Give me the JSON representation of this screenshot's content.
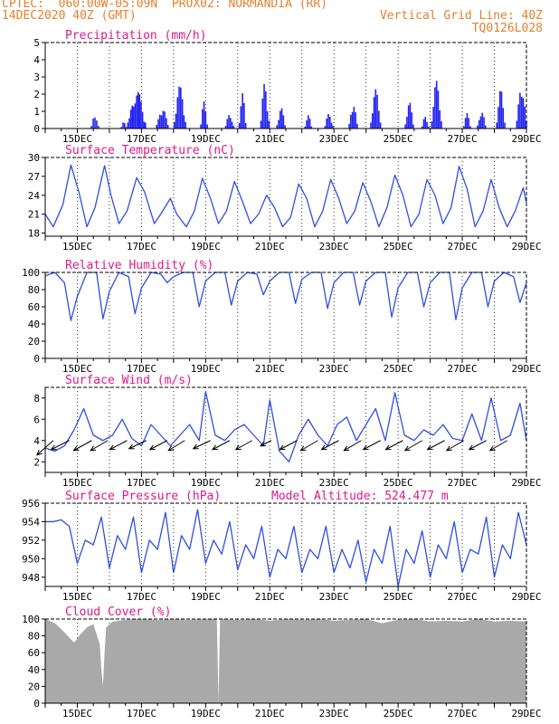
{
  "header": {
    "line1_left": "CPTEC:  060:00W-05:09N  PROX02: NORMANDIA (RR)",
    "line2_left": "14DEC2020 40Z (GMT)",
    "line2_right": "Vertical Grid Line: 40Z",
    "line3_right": "TQ0126L028"
  },
  "colors": {
    "header": "#e5802e",
    "title": "#e0188c",
    "line": "#2f4fe0",
    "bar": "#2323f0",
    "cloud": "#a9a9a9",
    "arrow": "#000000"
  },
  "x_axis": {
    "start_day": 14,
    "end_day": 29,
    "tick_labels": [
      "15DEC",
      "17DEC",
      "19DEC",
      "21DEC",
      "23DEC",
      "25DEC",
      "27DEC",
      "29DEC"
    ]
  },
  "chart_data": [
    {
      "type": "bar",
      "title": "Precipitation (mm/h)",
      "ylim": [
        0,
        5
      ],
      "yticks": [
        0,
        1,
        2,
        3,
        4,
        5
      ],
      "events": [
        {
          "day": 15.55,
          "peak": 1.0,
          "width": 0.22
        },
        {
          "day": 16.45,
          "peak": 0.6,
          "width": 0.15
        },
        {
          "day": 16.85,
          "peak": 2.3,
          "width": 0.55
        },
        {
          "day": 17.65,
          "peak": 1.4,
          "width": 0.35
        },
        {
          "day": 18.2,
          "peak": 2.5,
          "width": 0.35
        },
        {
          "day": 18.95,
          "peak": 1.6,
          "width": 0.2
        },
        {
          "day": 19.75,
          "peak": 1.0,
          "width": 0.25
        },
        {
          "day": 20.15,
          "peak": 2.1,
          "width": 0.2
        },
        {
          "day": 20.85,
          "peak": 3.0,
          "width": 0.25
        },
        {
          "day": 21.35,
          "peak": 1.3,
          "width": 0.25
        },
        {
          "day": 22.2,
          "peak": 0.8,
          "width": 0.2
        },
        {
          "day": 22.85,
          "peak": 1.0,
          "width": 0.25
        },
        {
          "day": 23.6,
          "peak": 1.8,
          "width": 0.25
        },
        {
          "day": 24.3,
          "peak": 2.3,
          "width": 0.3
        },
        {
          "day": 25.35,
          "peak": 1.6,
          "width": 0.25
        },
        {
          "day": 25.85,
          "peak": 0.8,
          "width": 0.2
        },
        {
          "day": 26.2,
          "peak": 2.8,
          "width": 0.3
        },
        {
          "day": 27.15,
          "peak": 0.9,
          "width": 0.2
        },
        {
          "day": 27.6,
          "peak": 1.2,
          "width": 0.25
        },
        {
          "day": 28.2,
          "peak": 2.3,
          "width": 0.25
        },
        {
          "day": 28.85,
          "peak": 3.0,
          "width": 0.3
        }
      ]
    },
    {
      "type": "line",
      "title": "Surface Temperature (nC)",
      "ylim": [
        17.5,
        30
      ],
      "yticks": [
        18,
        21,
        24,
        27,
        30
      ],
      "x": [
        14.0,
        14.25,
        14.55,
        14.8,
        15.05,
        15.3,
        15.55,
        15.85,
        16.05,
        16.3,
        16.55,
        16.85,
        17.1,
        17.4,
        17.6,
        17.9,
        18.1,
        18.4,
        18.65,
        18.9,
        19.15,
        19.4,
        19.65,
        19.9,
        20.15,
        20.4,
        20.65,
        20.9,
        21.15,
        21.4,
        21.65,
        21.9,
        22.15,
        22.4,
        22.65,
        22.9,
        23.15,
        23.4,
        23.65,
        23.9,
        24.15,
        24.4,
        24.65,
        24.9,
        25.15,
        25.4,
        25.65,
        25.9,
        26.15,
        26.4,
        26.65,
        26.9,
        27.15,
        27.4,
        27.65,
        27.9,
        28.15,
        28.4,
        28.65,
        28.9,
        29.0
      ],
      "values": [
        21.0,
        19.0,
        22.5,
        28.8,
        24.5,
        19.0,
        22.0,
        28.7,
        24.0,
        19.5,
        21.5,
        26.8,
        24.5,
        19.5,
        21.0,
        23.5,
        21.0,
        19.0,
        21.5,
        26.7,
        23.5,
        19.5,
        21.5,
        26.2,
        23.0,
        19.5,
        21.0,
        24.0,
        22.0,
        19.0,
        20.5,
        25.8,
        23.5,
        19.0,
        21.5,
        26.5,
        23.5,
        19.5,
        21.5,
        26.0,
        23.0,
        19.0,
        22.0,
        27.2,
        24.0,
        19.0,
        21.0,
        26.5,
        24.0,
        19.5,
        22.0,
        28.6,
        25.0,
        19.0,
        21.5,
        26.5,
        22.0,
        19.0,
        21.5,
        25.2,
        22.8
      ]
    },
    {
      "type": "line",
      "title": "Relative Humidity (%)",
      "ylim": [
        0,
        100
      ],
      "yticks": [
        0,
        20,
        40,
        60,
        80,
        100
      ],
      "x": [
        14.0,
        14.3,
        14.6,
        14.8,
        15.0,
        15.3,
        15.6,
        15.8,
        16.0,
        16.3,
        16.6,
        16.8,
        17.0,
        17.3,
        17.6,
        17.8,
        18.0,
        18.3,
        18.6,
        18.8,
        19.0,
        19.3,
        19.6,
        19.8,
        20.0,
        20.3,
        20.6,
        20.8,
        21.0,
        21.3,
        21.6,
        21.8,
        22.0,
        22.3,
        22.6,
        22.8,
        23.0,
        23.3,
        23.6,
        23.8,
        24.0,
        24.3,
        24.6,
        24.8,
        25.0,
        25.3,
        25.6,
        25.8,
        26.0,
        26.3,
        26.6,
        26.8,
        27.0,
        27.3,
        27.6,
        27.8,
        28.0,
        28.3,
        28.6,
        28.8,
        29.0
      ],
      "values": [
        96,
        100,
        88,
        44,
        72,
        100,
        100,
        46,
        78,
        100,
        95,
        52,
        82,
        100,
        98,
        88,
        95,
        100,
        100,
        60,
        90,
        100,
        100,
        62,
        90,
        100,
        98,
        74,
        90,
        100,
        100,
        64,
        92,
        100,
        100,
        58,
        88,
        100,
        100,
        62,
        90,
        100,
        100,
        48,
        82,
        100,
        100,
        60,
        88,
        100,
        100,
        45,
        82,
        100,
        100,
        60,
        90,
        100,
        95,
        65,
        88
      ]
    },
    {
      "type": "line",
      "title": "Surface Wind (m/s)",
      "ylim": [
        1,
        9
      ],
      "yticks": [
        2,
        4,
        6,
        8
      ],
      "x": [
        14.0,
        14.3,
        14.6,
        14.9,
        15.2,
        15.5,
        15.8,
        16.1,
        16.4,
        16.7,
        17.0,
        17.3,
        17.6,
        17.9,
        18.2,
        18.5,
        18.8,
        19.0,
        19.3,
        19.6,
        19.9,
        20.2,
        20.5,
        20.8,
        21.0,
        21.3,
        21.6,
        21.9,
        22.2,
        22.5,
        22.8,
        23.1,
        23.4,
        23.7,
        24.0,
        24.3,
        24.6,
        24.9,
        25.2,
        25.5,
        25.8,
        26.1,
        26.4,
        26.7,
        27.0,
        27.3,
        27.6,
        27.9,
        28.2,
        28.5,
        28.8,
        29.0
      ],
      "values": [
        3.3,
        3.0,
        3.5,
        5.0,
        7.0,
        4.5,
        4.0,
        4.5,
        6.0,
        4.2,
        3.5,
        5.5,
        4.5,
        3.5,
        4.5,
        5.5,
        4.0,
        8.6,
        4.5,
        4.0,
        5.0,
        5.5,
        4.5,
        3.5,
        7.8,
        3.0,
        2.0,
        4.5,
        6.0,
        4.5,
        3.5,
        5.5,
        6.2,
        4.0,
        5.5,
        7.0,
        4.0,
        8.5,
        4.5,
        4.0,
        5.0,
        4.5,
        5.5,
        4.2,
        4.0,
        6.5,
        4.0,
        8.0,
        4.0,
        4.5,
        7.5,
        4.0
      ],
      "vectors": [
        {
          "day": 14.25,
          "dx": 0.9,
          "dy": 0.8
        },
        {
          "day": 14.75,
          "dx": 1.0,
          "dy": 0.5
        },
        {
          "day": 15.45,
          "dx": 1.0,
          "dy": 0.55
        },
        {
          "day": 15.95,
          "dx": 0.95,
          "dy": 0.55
        },
        {
          "day": 16.55,
          "dx": 0.95,
          "dy": 0.5
        },
        {
          "day": 17.15,
          "dx": 0.95,
          "dy": 0.45
        },
        {
          "day": 17.8,
          "dx": 0.95,
          "dy": 0.5
        },
        {
          "day": 18.35,
          "dx": 0.9,
          "dy": 0.55
        },
        {
          "day": 19.15,
          "dx": 0.95,
          "dy": 0.45
        },
        {
          "day": 19.75,
          "dx": 0.95,
          "dy": 0.5
        },
        {
          "day": 20.45,
          "dx": 0.9,
          "dy": 0.5
        },
        {
          "day": 21.05,
          "dx": 0.6,
          "dy": 0.3
        },
        {
          "day": 21.85,
          "dx": 0.95,
          "dy": 0.5
        },
        {
          "day": 22.5,
          "dx": 0.95,
          "dy": 0.55
        },
        {
          "day": 23.15,
          "dx": 0.95,
          "dy": 0.5
        },
        {
          "day": 23.85,
          "dx": 0.95,
          "dy": 0.55
        },
        {
          "day": 24.45,
          "dx": 0.95,
          "dy": 0.5
        },
        {
          "day": 25.15,
          "dx": 0.95,
          "dy": 0.5
        },
        {
          "day": 25.75,
          "dx": 0.95,
          "dy": 0.55
        },
        {
          "day": 26.45,
          "dx": 0.95,
          "dy": 0.5
        },
        {
          "day": 27.05,
          "dx": 0.95,
          "dy": 0.55
        },
        {
          "day": 27.75,
          "dx": 0.95,
          "dy": 0.5
        },
        {
          "day": 28.4,
          "dx": 0.95,
          "dy": 0.55
        }
      ]
    },
    {
      "type": "line",
      "title": "Surface Pressure (hPa)",
      "subtitle": "Model Altitude: 524.477 m",
      "ylim": [
        947,
        956
      ],
      "yticks": [
        948,
        950,
        952,
        954,
        956
      ],
      "x": [
        14.0,
        14.25,
        14.5,
        14.75,
        15.0,
        15.25,
        15.5,
        15.75,
        16.0,
        16.25,
        16.5,
        16.75,
        17.0,
        17.25,
        17.5,
        17.75,
        18.0,
        18.25,
        18.5,
        18.75,
        19.0,
        19.25,
        19.5,
        19.75,
        20.0,
        20.25,
        20.5,
        20.75,
        21.0,
        21.25,
        21.5,
        21.75,
        22.0,
        22.25,
        22.5,
        22.75,
        23.0,
        23.25,
        23.5,
        23.75,
        24.0,
        24.25,
        24.5,
        24.75,
        25.0,
        25.25,
        25.5,
        25.75,
        26.0,
        26.25,
        26.5,
        26.75,
        27.0,
        27.25,
        27.5,
        27.75,
        28.0,
        28.25,
        28.5,
        28.75,
        29.0
      ],
      "values": [
        954.0,
        954.0,
        954.2,
        953.5,
        949.5,
        952.0,
        951.5,
        954.5,
        949.0,
        952.5,
        951.0,
        954.5,
        948.5,
        952.0,
        951.0,
        955.0,
        948.5,
        952.5,
        951.0,
        955.3,
        949.5,
        952.0,
        950.5,
        954.0,
        948.8,
        951.5,
        950.0,
        953.5,
        948.0,
        951.0,
        950.0,
        953.5,
        948.5,
        951.0,
        950.0,
        953.5,
        948.5,
        951.0,
        949.0,
        952.0,
        947.5,
        951.0,
        949.5,
        953.5,
        947.0,
        951.0,
        949.5,
        953.0,
        948.0,
        951.5,
        950.0,
        954.0,
        948.5,
        951.0,
        950.5,
        954.5,
        948.0,
        951.5,
        950.0,
        955.0,
        951.5
      ]
    },
    {
      "type": "area",
      "title": "Cloud Cover (%)",
      "ylim": [
        0,
        100
      ],
      "yticks": [
        0,
        20,
        40,
        60,
        80,
        100
      ],
      "x": [
        14.0,
        14.3,
        14.5,
        14.7,
        14.9,
        15.1,
        15.3,
        15.5,
        15.7,
        15.75,
        15.8,
        15.85,
        15.9,
        16.1,
        16.5,
        17.0,
        17.5,
        18.0,
        18.5,
        19.0,
        19.35,
        19.4,
        19.45,
        20.0,
        20.5,
        21.0,
        21.5,
        22.0,
        22.5,
        23.0,
        23.5,
        24.0,
        24.5,
        25.0,
        25.5,
        26.0,
        26.5,
        27.0,
        27.5,
        28.0,
        28.5,
        29.0
      ],
      "values": [
        100,
        95,
        88,
        80,
        72,
        82,
        90,
        94,
        70,
        40,
        20,
        60,
        90,
        97,
        99,
        100,
        99,
        100,
        99,
        100,
        100,
        0,
        100,
        99,
        100,
        98,
        100,
        99,
        100,
        98,
        99,
        100,
        95,
        99,
        100,
        97,
        98,
        97,
        100,
        97,
        98,
        97
      ]
    }
  ]
}
